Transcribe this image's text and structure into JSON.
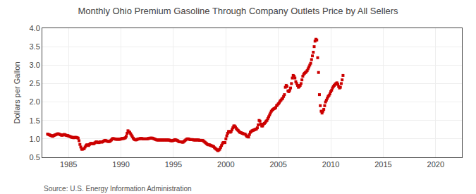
{
  "chart_data": {
    "type": "scatter",
    "title": "Monthly Ohio Premium Gasoline Through Company Outlets Price by All Sellers",
    "ylabel": "Dollars per Gallon",
    "annotations": [
      "Source: U.S. Energy Information Administration"
    ],
    "color": "#cc0000",
    "marker": "square",
    "grid": true,
    "xlim": [
      1982.5,
      2022.5
    ],
    "ylim": [
      0.5,
      4.0
    ],
    "xticks": [
      1985,
      1990,
      1995,
      2000,
      2005,
      2010,
      2015,
      2020
    ],
    "yticks": [
      0.5,
      {
        "value": 1.0,
        "label": "1.0"
      },
      1.5,
      {
        "value": 2.0,
        "label": "2.0"
      },
      2.5,
      {
        "value": 3.0,
        "label": "3.0"
      },
      3.5,
      {
        "value": 4.0,
        "label": "4.0"
      }
    ],
    "x": [
      1983.0,
      1983.083,
      1983.167,
      1983.25,
      1983.333,
      1983.417,
      1983.5,
      1983.583,
      1983.667,
      1983.75,
      1983.833,
      1983.917,
      1984.0,
      1984.083,
      1984.167,
      1984.25,
      1984.333,
      1984.417,
      1984.5,
      1984.583,
      1984.667,
      1984.75,
      1984.833,
      1984.917,
      1985.0,
      1985.083,
      1985.167,
      1985.25,
      1985.333,
      1985.417,
      1985.5,
      1985.583,
      1985.667,
      1985.75,
      1985.833,
      1985.917,
      1986.0,
      1986.083,
      1986.167,
      1986.25,
      1986.333,
      1986.417,
      1986.5,
      1986.583,
      1986.667,
      1986.75,
      1986.833,
      1986.917,
      1987.0,
      1987.083,
      1987.167,
      1987.25,
      1987.333,
      1987.417,
      1987.5,
      1987.583,
      1987.667,
      1987.75,
      1987.833,
      1987.917,
      1988.0,
      1988.083,
      1988.167,
      1988.25,
      1988.333,
      1988.417,
      1988.5,
      1988.583,
      1988.667,
      1988.75,
      1988.833,
      1988.917,
      1989.0,
      1989.083,
      1989.167,
      1989.25,
      1989.333,
      1989.417,
      1989.5,
      1989.583,
      1989.667,
      1989.75,
      1989.833,
      1989.917,
      1990.0,
      1990.083,
      1990.167,
      1990.25,
      1990.333,
      1990.417,
      1990.5,
      1990.583,
      1990.667,
      1990.75,
      1990.833,
      1990.917,
      1991.0,
      1991.083,
      1991.167,
      1991.25,
      1991.333,
      1991.417,
      1991.5,
      1991.583,
      1991.667,
      1991.75,
      1991.833,
      1991.917,
      1992.0,
      1992.083,
      1992.167,
      1992.25,
      1992.333,
      1992.417,
      1992.5,
      1992.583,
      1992.667,
      1992.75,
      1992.833,
      1992.917,
      1993.0,
      1993.083,
      1993.167,
      1993.25,
      1993.333,
      1993.417,
      1993.5,
      1993.583,
      1993.667,
      1993.75,
      1993.833,
      1993.917,
      1994.0,
      1994.083,
      1994.167,
      1994.25,
      1994.333,
      1994.417,
      1994.5,
      1994.583,
      1994.667,
      1994.75,
      1994.833,
      1994.917,
      1995.0,
      1995.083,
      1995.167,
      1995.25,
      1995.333,
      1995.417,
      1995.5,
      1995.583,
      1995.667,
      1995.75,
      1995.833,
      1995.917,
      1996.0,
      1996.083,
      1996.167,
      1996.25,
      1996.333,
      1996.417,
      1996.5,
      1996.583,
      1996.667,
      1996.75,
      1996.833,
      1996.917,
      1997.0,
      1997.083,
      1997.167,
      1997.25,
      1997.333,
      1997.417,
      1997.5,
      1997.583,
      1997.667,
      1997.75,
      1997.833,
      1997.917,
      1998.0,
      1998.083,
      1998.167,
      1998.25,
      1998.333,
      1998.417,
      1998.5,
      1998.583,
      1998.667,
      1998.75,
      1998.833,
      1998.917,
      1999.0,
      1999.083,
      1999.167,
      1999.25,
      1999.333,
      1999.417,
      1999.5,
      1999.583,
      1999.667,
      1999.75,
      1999.833,
      1999.917,
      2000.0,
      2000.083,
      2000.167,
      2000.25,
      2000.333,
      2000.417,
      2000.5,
      2000.583,
      2000.667,
      2000.75,
      2000.833,
      2000.917,
      2001.0,
      2001.083,
      2001.167,
      2001.25,
      2001.333,
      2001.417,
      2001.5,
      2001.583,
      2001.667,
      2001.75,
      2001.833,
      2001.917,
      2002.0,
      2002.083,
      2002.167,
      2002.25,
      2002.333,
      2002.417,
      2002.5,
      2002.583,
      2002.667,
      2002.75,
      2002.833,
      2002.917,
      2003.0,
      2003.083,
      2003.167,
      2003.25,
      2003.333,
      2003.417,
      2003.5,
      2003.583,
      2003.667,
      2003.75,
      2003.833,
      2003.917,
      2004.0,
      2004.083,
      2004.167,
      2004.25,
      2004.333,
      2004.417,
      2004.5,
      2004.583,
      2004.667,
      2004.75,
      2004.833,
      2004.917,
      2005.0,
      2005.083,
      2005.167,
      2005.25,
      2005.333,
      2005.417,
      2005.5,
      2005.583,
      2005.667,
      2005.75,
      2005.833,
      2005.917,
      2006.0,
      2006.083,
      2006.167,
      2006.25,
      2006.333,
      2006.417,
      2006.5,
      2006.583,
      2006.667,
      2006.75,
      2006.833,
      2006.917,
      2007.0,
      2007.083,
      2007.167,
      2007.25,
      2007.333,
      2007.417,
      2007.5,
      2007.583,
      2007.667,
      2007.75,
      2007.833,
      2007.917,
      2008.0,
      2008.083,
      2008.167,
      2008.25,
      2008.333,
      2008.417,
      2008.5,
      2008.583,
      2008.667,
      2008.75,
      2008.833,
      2008.917,
      2009.0,
      2009.083,
      2009.167,
      2009.25,
      2009.333,
      2009.417,
      2009.5,
      2009.583,
      2009.667,
      2009.75,
      2009.833,
      2009.917,
      2010.0,
      2010.083,
      2010.167,
      2010.25,
      2010.333,
      2010.417,
      2010.5,
      2010.583,
      2010.667,
      2010.75,
      2010.833,
      2010.917,
      2011.0,
      2011.083,
      2011.167
    ],
    "values": [
      1.13,
      1.12,
      1.11,
      1.1,
      1.09,
      1.08,
      1.07,
      1.09,
      1.1,
      1.11,
      1.12,
      1.13,
      1.14,
      1.13,
      1.12,
      1.11,
      1.1,
      1.1,
      1.11,
      1.12,
      1.11,
      1.1,
      1.09,
      1.09,
      1.08,
      1.07,
      1.06,
      1.05,
      1.04,
      1.04,
      1.03,
      1.04,
      1.04,
      1.04,
      1.03,
      1.02,
      0.95,
      0.85,
      0.78,
      0.72,
      0.72,
      0.73,
      0.74,
      0.78,
      0.82,
      0.84,
      0.83,
      0.82,
      0.85,
      0.87,
      0.88,
      0.87,
      0.87,
      0.87,
      0.89,
      0.91,
      0.92,
      0.91,
      0.9,
      0.9,
      0.92,
      0.92,
      0.91,
      0.92,
      0.94,
      0.95,
      0.96,
      0.95,
      0.94,
      0.93,
      0.93,
      0.93,
      0.95,
      0.97,
      1.0,
      1.01,
      1.0,
      1.0,
      0.99,
      0.99,
      0.99,
      0.99,
      0.99,
      0.99,
      1.0,
      1.01,
      1.01,
      1.01,
      1.02,
      1.03,
      1.07,
      1.15,
      1.22,
      1.19,
      1.18,
      1.14,
      1.1,
      1.06,
      1.02,
      0.99,
      0.98,
      0.97,
      0.98,
      0.99,
      1.0,
      1.0,
      1.01,
      1.01,
      1.01,
      1.0,
      1.0,
      1.0,
      1.0,
      1.0,
      1.0,
      1.01,
      1.01,
      1.02,
      1.02,
      1.02,
      1.02,
      1.01,
      1.0,
      0.99,
      0.98,
      0.97,
      0.97,
      0.97,
      0.97,
      0.97,
      0.97,
      0.97,
      0.97,
      0.97,
      0.97,
      0.97,
      0.97,
      0.97,
      0.97,
      0.97,
      0.96,
      0.95,
      0.95,
      0.95,
      0.96,
      0.97,
      0.98,
      0.97,
      0.96,
      0.95,
      0.93,
      0.92,
      0.92,
      0.92,
      0.91,
      0.91,
      0.93,
      0.95,
      0.97,
      0.99,
      1.0,
      1.0,
      0.99,
      0.98,
      0.98,
      0.98,
      0.98,
      0.97,
      0.97,
      0.97,
      0.97,
      0.97,
      0.97,
      0.97,
      0.96,
      0.96,
      0.96,
      0.96,
      0.95,
      0.93,
      0.91,
      0.89,
      0.87,
      0.85,
      0.84,
      0.84,
      0.83,
      0.82,
      0.81,
      0.8,
      0.79,
      0.76,
      0.74,
      0.72,
      0.7,
      0.68,
      0.7,
      0.72,
      0.77,
      0.82,
      0.87,
      0.9,
      0.9,
      0.9,
      1.0,
      1.08,
      1.15,
      1.2,
      1.2,
      1.18,
      1.2,
      1.25,
      1.3,
      1.35,
      1.35,
      1.32,
      1.28,
      1.25,
      1.23,
      1.2,
      1.18,
      1.17,
      1.16,
      1.15,
      1.14,
      1.13,
      1.13,
      1.1,
      1.07,
      1.06,
      1.05,
      1.12,
      1.18,
      1.2,
      1.22,
      1.23,
      1.24,
      1.25,
      1.26,
      1.27,
      1.3,
      1.38,
      1.5,
      1.48,
      1.4,
      1.35,
      1.35,
      1.4,
      1.42,
      1.44,
      1.48,
      1.5,
      1.55,
      1.6,
      1.65,
      1.7,
      1.75,
      1.78,
      1.8,
      1.82,
      1.83,
      1.85,
      1.9,
      1.92,
      1.95,
      1.98,
      2.02,
      2.05,
      2.08,
      2.1,
      2.15,
      2.2,
      2.4,
      2.45,
      2.42,
      2.3,
      2.28,
      2.32,
      2.38,
      2.5,
      2.65,
      2.72,
      2.7,
      2.65,
      2.55,
      2.5,
      2.45,
      2.4,
      2.42,
      2.45,
      2.5,
      2.6,
      2.7,
      2.75,
      2.78,
      2.8,
      2.82,
      2.85,
      2.9,
      2.95,
      3.0,
      3.05,
      3.15,
      3.25,
      3.35,
      3.5,
      3.65,
      3.7,
      3.68,
      3.2,
      2.8,
      2.2,
      1.9,
      1.75,
      1.7,
      1.75,
      1.8,
      1.9,
      2.0,
      2.05,
      2.1,
      2.15,
      2.18,
      2.22,
      2.28,
      2.32,
      2.38,
      2.42,
      2.45,
      2.48,
      2.5,
      2.52,
      2.48,
      2.42,
      2.38,
      2.4,
      2.5,
      2.6,
      2.72
    ]
  }
}
